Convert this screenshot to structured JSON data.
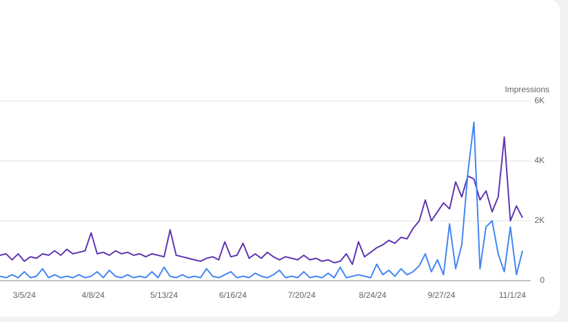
{
  "chart_data": {
    "type": "line",
    "y_axis_label": "Impressions",
    "x": [
      "2/22/24",
      "2/25/24",
      "2/28/24",
      "3/2/24",
      "3/5/24",
      "3/8/24",
      "3/11/24",
      "3/14/24",
      "3/17/24",
      "3/20/24",
      "3/23/24",
      "3/26/24",
      "3/29/24",
      "4/1/24",
      "4/4/24",
      "4/7/24",
      "4/10/24",
      "4/13/24",
      "4/16/24",
      "4/19/24",
      "4/22/24",
      "4/25/24",
      "4/28/24",
      "5/1/24",
      "5/4/24",
      "5/7/24",
      "5/10/24",
      "5/13/24",
      "5/16/24",
      "5/19/24",
      "5/22/24",
      "5/25/24",
      "5/28/24",
      "5/31/24",
      "6/3/24",
      "6/6/24",
      "6/9/24",
      "6/12/24",
      "6/15/24",
      "6/18/24",
      "6/21/24",
      "6/24/24",
      "6/27/24",
      "6/30/24",
      "7/3/24",
      "7/6/24",
      "7/9/24",
      "7/12/24",
      "7/15/24",
      "7/18/24",
      "7/21/24",
      "7/24/24",
      "7/27/24",
      "7/30/24",
      "8/2/24",
      "8/5/24",
      "8/8/24",
      "8/11/24",
      "8/14/24",
      "8/17/24",
      "8/20/24",
      "8/23/24",
      "8/26/24",
      "8/29/24",
      "9/1/24",
      "9/4/24",
      "9/7/24",
      "9/10/24",
      "9/13/24",
      "9/16/24",
      "9/19/24",
      "9/22/24",
      "9/25/24",
      "9/28/24",
      "10/1/24",
      "10/4/24",
      "10/7/24",
      "10/10/24",
      "10/13/24",
      "10/16/24",
      "10/19/24",
      "10/22/24",
      "10/25/24",
      "10/28/24",
      "10/31/24",
      "11/3/24",
      "11/6/24"
    ],
    "series": [
      {
        "color": "#5e35b1",
        "values": [
          850,
          900,
          700,
          900,
          650,
          800,
          750,
          900,
          850,
          1000,
          850,
          1050,
          900,
          950,
          1000,
          1600,
          900,
          950,
          850,
          1000,
          900,
          950,
          850,
          900,
          800,
          900,
          850,
          800,
          1700,
          850,
          800,
          750,
          700,
          650,
          750,
          800,
          700,
          1300,
          800,
          850,
          1250,
          750,
          900,
          750,
          950,
          800,
          700,
          800,
          750,
          700,
          850,
          700,
          750,
          650,
          700,
          600,
          650,
          900,
          550,
          1300,
          800,
          950,
          1100,
          1200,
          1350,
          1250,
          1450,
          1400,
          1750,
          2000,
          2700,
          2000,
          2300,
          2600,
          2400,
          3300,
          2800,
          3500,
          3400,
          2700,
          3000,
          2300,
          2800,
          4800,
          2000,
          2500,
          2100
        ]
      },
      {
        "color": "#4285f4",
        "values": [
          150,
          100,
          200,
          100,
          300,
          100,
          150,
          400,
          100,
          200,
          100,
          150,
          100,
          200,
          100,
          150,
          300,
          100,
          350,
          150,
          100,
          200,
          100,
          150,
          100,
          300,
          100,
          450,
          150,
          100,
          200,
          100,
          150,
          100,
          400,
          150,
          100,
          200,
          300,
          100,
          150,
          100,
          250,
          150,
          100,
          200,
          350,
          100,
          150,
          100,
          300,
          100,
          150,
          100,
          250,
          100,
          450,
          100,
          150,
          200,
          150,
          100,
          550,
          200,
          350,
          150,
          400,
          200,
          300,
          500,
          900,
          300,
          700,
          200,
          1900,
          400,
          1200,
          3600,
          5300,
          400,
          1800,
          2000,
          900,
          300,
          1800,
          200,
          1000
        ]
      }
    ],
    "xticks": [
      "3/5/24",
      "4/8/24",
      "5/13/24",
      "6/16/24",
      "7/20/24",
      "8/24/24",
      "9/27/24",
      "11/1/24"
    ],
    "ylim": [
      0,
      6000
    ],
    "yticks": [
      0,
      {
        "value": 2000,
        "label": "2K"
      },
      {
        "value": 4000,
        "label": "4K"
      },
      {
        "value": 6000,
        "label": "6K"
      }
    ],
    "grid": true
  }
}
